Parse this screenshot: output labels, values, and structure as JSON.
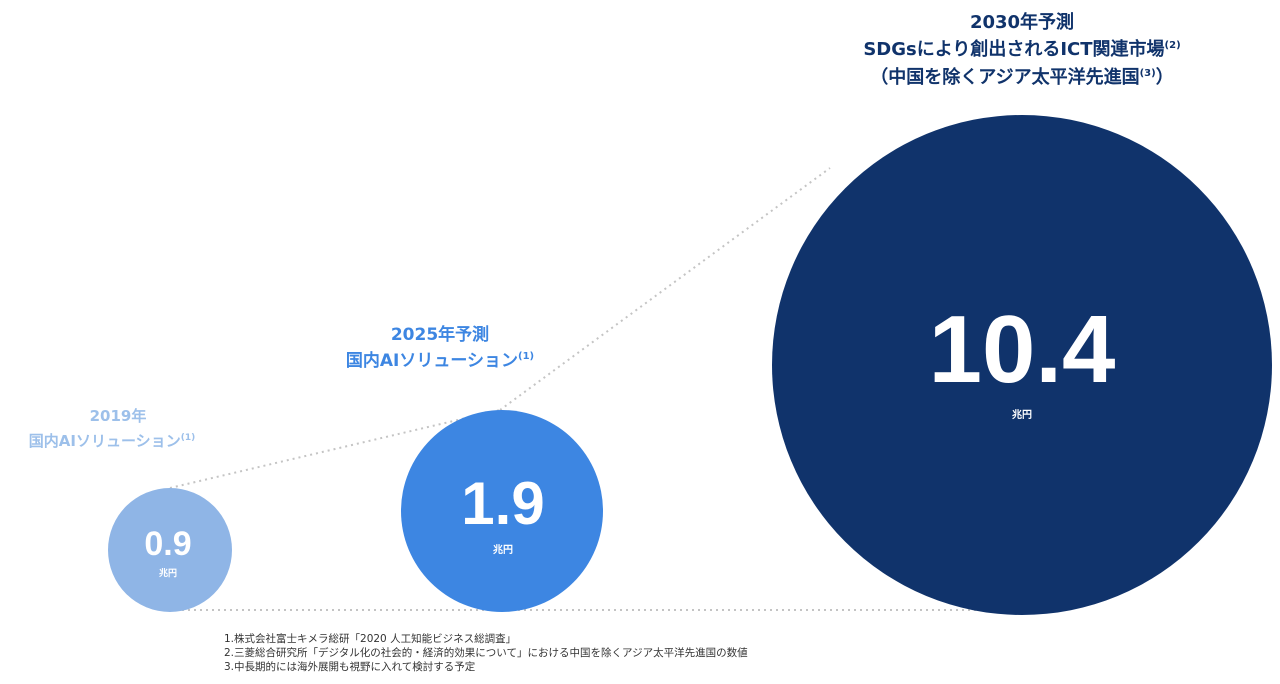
{
  "chart_data": {
    "type": "bubble",
    "unit": "兆円",
    "bubbles": [
      {
        "year_label": "2019年",
        "category_label": "国内AIソリューション",
        "note_ref": "(1)",
        "value": 0.9,
        "value_label": "0.9",
        "unit_label": "兆円",
        "color": "#8fb5e6",
        "label_color": "#9dc0ea"
      },
      {
        "year_label": "2025年予測",
        "category_label": "国内AIソリューション",
        "note_ref": "(1)",
        "value": 1.9,
        "value_label": "1.9",
        "unit_label": "兆円",
        "color": "#3d86e2",
        "label_color": "#3d86e2"
      },
      {
        "year_label": "2030年予測",
        "category_label": "SDGsにより創出されるICT関連市場",
        "note_ref": "(2)",
        "category_label_2": "（中国を除くアジア太平洋先進国",
        "note_ref_2": "(3)",
        "category_label_2_end": "）",
        "value": 10.4,
        "value_label": "10.4",
        "unit_label": "兆円",
        "color": "#10336b",
        "label_color": "#10336b"
      }
    ],
    "connector_color": "#c4c4c4"
  },
  "footnotes": [
    "1.株式会社富士キメラ総研「2020 人工知能ビジネス総調査」",
    "2.三菱総合研究所「デジタル化の社会的・経済的効果について」における中国を除くアジア太平洋先進国の数値",
    "3.中長期的には海外展開も視野に入れて検討する予定"
  ]
}
